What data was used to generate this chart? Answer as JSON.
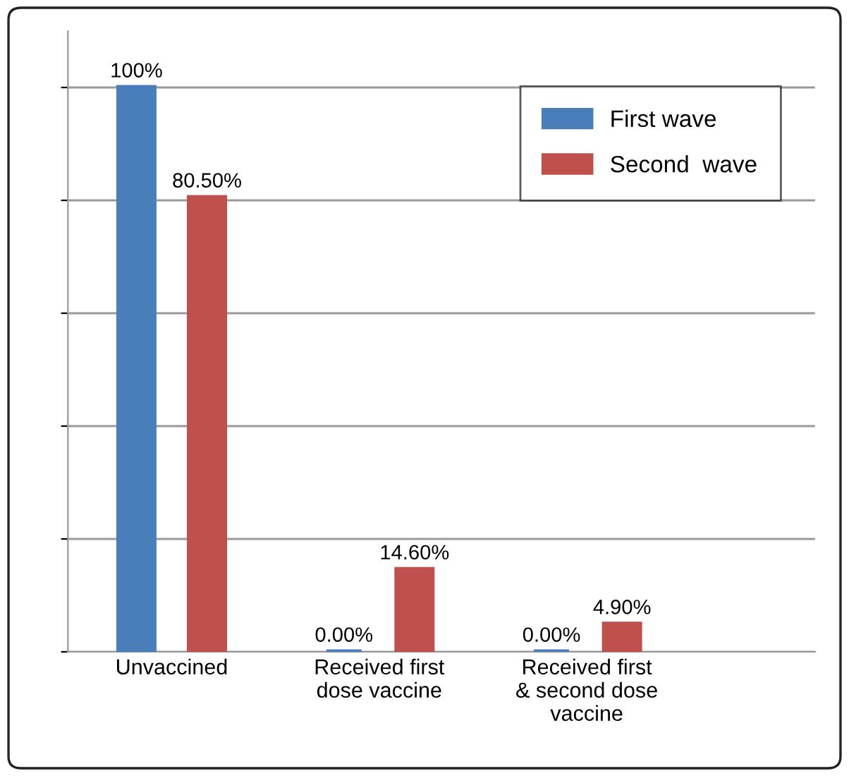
{
  "chart_data": {
    "type": "bar",
    "categories": [
      "Unvaccined",
      "Received first\ndose vaccine",
      "Received first\n& second dose\nvaccine"
    ],
    "series": [
      {
        "name": "First wave",
        "color": "#4a7ebb",
        "values": [
          100,
          0,
          0
        ],
        "value_labels": [
          "100%",
          "0.00%",
          "0.00%"
        ]
      },
      {
        "name": "Second  wave",
        "color": "#c0504d",
        "values": [
          80.5,
          14.6,
          4.9
        ],
        "value_labels": [
          "80.50%",
          "14.60%",
          "4.90%"
        ]
      }
    ],
    "ylim": [
      0,
      110
    ],
    "yticks": [
      {
        "value": 0,
        "label": null
      },
      {
        "value": 20,
        "label": null
      },
      {
        "value": 40,
        "label": null
      },
      {
        "value": 60,
        "label": null
      },
      {
        "value": 80,
        "label": null
      },
      {
        "value": 100,
        "label": null
      }
    ],
    "grid": "y",
    "legend": "top right"
  }
}
